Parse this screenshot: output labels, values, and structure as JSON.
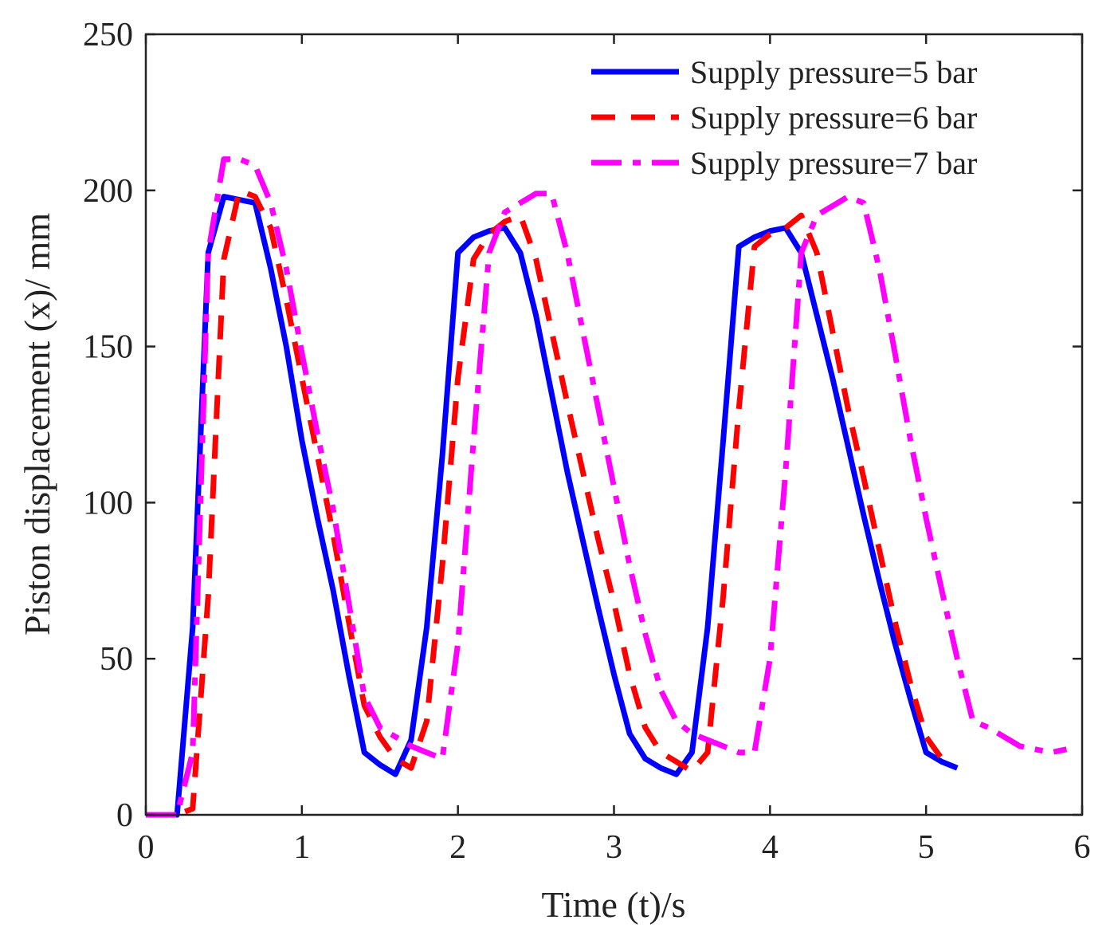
{
  "chart_data": {
    "type": "line",
    "title": "",
    "xlabel": "Time (t)/s",
    "ylabel": "Piston displacement (x)/ mm",
    "xlim": [
      0,
      6
    ],
    "ylim": [
      0,
      250
    ],
    "xticks": [
      0,
      1,
      2,
      3,
      4,
      5,
      6
    ],
    "yticks": [
      0,
      50,
      100,
      150,
      200,
      250
    ],
    "grid": false,
    "legend_position": "top-right",
    "series": [
      {
        "name": "Supply pressure=5 bar",
        "color": "#0000ff",
        "style": "solid",
        "points": [
          [
            0,
            0
          ],
          [
            0.2,
            0
          ],
          [
            0.3,
            60
          ],
          [
            0.4,
            180
          ],
          [
            0.5,
            198
          ],
          [
            0.6,
            197
          ],
          [
            0.7,
            196
          ],
          [
            0.8,
            175
          ],
          [
            0.9,
            150
          ],
          [
            1.0,
            120
          ],
          [
            1.1,
            95
          ],
          [
            1.2,
            72
          ],
          [
            1.3,
            45
          ],
          [
            1.4,
            20
          ],
          [
            1.5,
            16
          ],
          [
            1.6,
            13
          ],
          [
            1.7,
            24
          ],
          [
            1.8,
            60
          ],
          [
            1.9,
            115
          ],
          [
            2.0,
            180
          ],
          [
            2.1,
            185
          ],
          [
            2.2,
            187
          ],
          [
            2.3,
            188
          ],
          [
            2.4,
            180
          ],
          [
            2.5,
            160
          ],
          [
            2.6,
            135
          ],
          [
            2.7,
            110
          ],
          [
            2.8,
            88
          ],
          [
            2.9,
            66
          ],
          [
            3.0,
            45
          ],
          [
            3.1,
            26
          ],
          [
            3.2,
            18
          ],
          [
            3.3,
            15
          ],
          [
            3.4,
            13
          ],
          [
            3.5,
            20
          ],
          [
            3.6,
            60
          ],
          [
            3.7,
            120
          ],
          [
            3.8,
            182
          ],
          [
            3.9,
            185
          ],
          [
            4.0,
            187
          ],
          [
            4.1,
            188
          ],
          [
            4.2,
            180
          ],
          [
            4.3,
            160
          ],
          [
            4.4,
            140
          ],
          [
            4.5,
            118
          ],
          [
            4.6,
            96
          ],
          [
            4.7,
            75
          ],
          [
            4.8,
            55
          ],
          [
            4.9,
            37
          ],
          [
            5.0,
            20
          ],
          [
            5.1,
            17
          ],
          [
            5.2,
            15
          ]
        ]
      },
      {
        "name": "Supply pressure=6 bar",
        "color": "#ff0000",
        "style": "dashed",
        "points": [
          [
            0,
            0
          ],
          [
            0.2,
            0
          ],
          [
            0.3,
            2
          ],
          [
            0.4,
            70
          ],
          [
            0.5,
            178
          ],
          [
            0.6,
            200
          ],
          [
            0.7,
            198
          ],
          [
            0.8,
            188
          ],
          [
            0.9,
            165
          ],
          [
            1.0,
            140
          ],
          [
            1.1,
            115
          ],
          [
            1.2,
            90
          ],
          [
            1.3,
            62
          ],
          [
            1.4,
            35
          ],
          [
            1.5,
            25
          ],
          [
            1.6,
            18
          ],
          [
            1.7,
            15
          ],
          [
            1.8,
            30
          ],
          [
            1.9,
            80
          ],
          [
            2.0,
            140
          ],
          [
            2.1,
            178
          ],
          [
            2.2,
            186
          ],
          [
            2.3,
            190
          ],
          [
            2.4,
            192
          ],
          [
            2.5,
            178
          ],
          [
            2.6,
            155
          ],
          [
            2.7,
            132
          ],
          [
            2.8,
            110
          ],
          [
            2.9,
            88
          ],
          [
            3.0,
            68
          ],
          [
            3.1,
            45
          ],
          [
            3.2,
            28
          ],
          [
            3.3,
            20
          ],
          [
            3.4,
            17
          ],
          [
            3.5,
            14
          ],
          [
            3.6,
            20
          ],
          [
            3.7,
            70
          ],
          [
            3.8,
            130
          ],
          [
            3.9,
            182
          ],
          [
            4.0,
            186
          ],
          [
            4.1,
            188
          ],
          [
            4.2,
            192
          ],
          [
            4.3,
            180
          ],
          [
            4.4,
            155
          ],
          [
            4.5,
            130
          ],
          [
            4.6,
            108
          ],
          [
            4.7,
            85
          ],
          [
            4.8,
            62
          ],
          [
            4.9,
            42
          ],
          [
            5.0,
            25
          ],
          [
            5.1,
            18
          ]
        ]
      },
      {
        "name": "Supply pressure=7 bar",
        "color": "#ff00ff",
        "style": "dashdot",
        "points": [
          [
            0,
            0
          ],
          [
            0.2,
            0
          ],
          [
            0.3,
            20
          ],
          [
            0.4,
            180
          ],
          [
            0.5,
            210
          ],
          [
            0.6,
            210
          ],
          [
            0.7,
            208
          ],
          [
            0.8,
            196
          ],
          [
            0.9,
            175
          ],
          [
            1.0,
            148
          ],
          [
            1.1,
            122
          ],
          [
            1.2,
            98
          ],
          [
            1.3,
            68
          ],
          [
            1.4,
            38
          ],
          [
            1.5,
            28
          ],
          [
            1.6,
            25
          ],
          [
            1.7,
            22
          ],
          [
            1.8,
            20
          ],
          [
            1.9,
            18
          ],
          [
            2.0,
            55
          ],
          [
            2.1,
            120
          ],
          [
            2.2,
            180
          ],
          [
            2.3,
            193
          ],
          [
            2.4,
            196
          ],
          [
            2.5,
            199
          ],
          [
            2.6,
            199
          ],
          [
            2.7,
            180
          ],
          [
            2.8,
            155
          ],
          [
            2.9,
            130
          ],
          [
            3.0,
            105
          ],
          [
            3.1,
            80
          ],
          [
            3.2,
            58
          ],
          [
            3.3,
            40
          ],
          [
            3.4,
            30
          ],
          [
            3.5,
            26
          ],
          [
            3.6,
            24
          ],
          [
            3.7,
            22
          ],
          [
            3.8,
            20
          ],
          [
            3.9,
            20
          ],
          [
            4.0,
            50
          ],
          [
            4.1,
            110
          ],
          [
            4.2,
            180
          ],
          [
            4.3,
            192
          ],
          [
            4.4,
            195
          ],
          [
            4.5,
            198
          ],
          [
            4.6,
            196
          ],
          [
            4.7,
            175
          ],
          [
            4.8,
            148
          ],
          [
            4.9,
            120
          ],
          [
            5.0,
            95
          ],
          [
            5.1,
            72
          ],
          [
            5.2,
            50
          ],
          [
            5.3,
            30
          ],
          [
            5.4,
            28
          ],
          [
            5.5,
            25
          ],
          [
            5.6,
            22
          ],
          [
            5.7,
            21
          ],
          [
            5.8,
            20
          ],
          [
            5.9,
            21
          ]
        ]
      }
    ]
  }
}
